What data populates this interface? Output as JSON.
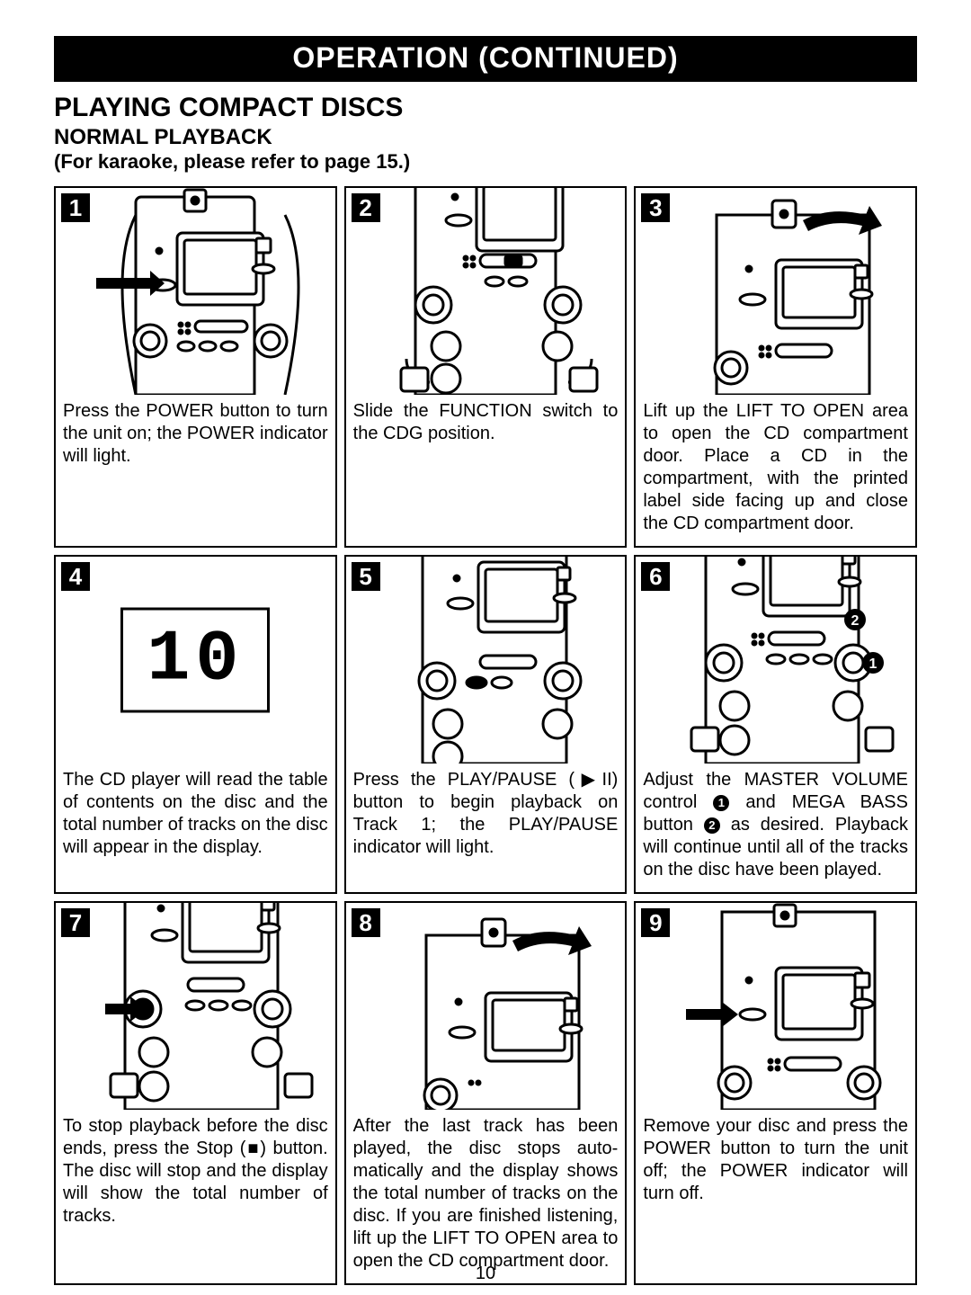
{
  "header": {
    "banner": "OPERATION (CONTINUED)",
    "title": "PLAYING COMPACT DISCS",
    "subtitle": "NORMAL PLAYBACK",
    "note": "(For karaoke, please refer to page 15.)"
  },
  "page_number": "10",
  "steps": [
    {
      "num": "1",
      "text": "Press the POWER button to turn the unit on; the POWER indicator will light."
    },
    {
      "num": "2",
      "text": "Slide the FUNCTION switch to the CDG position."
    },
    {
      "num": "3",
      "text": "Lift up the LIFT TO OPEN area to open the CD compartment door. Place a CD in the compartment, with the printed label side facing up and close the CD compartment door."
    },
    {
      "num": "4",
      "text": "The CD player will read the table of contents on the disc and the total number of tracks on the disc will appear in the display."
    },
    {
      "num": "5",
      "text": "Press the PLAY/PAUSE (▶II) button to begin playback on Track 1; the PLAY/PAUSE indicator will light."
    },
    {
      "num": "6",
      "text_html": "Adjust the MASTER VOLUME control <span class='circnum'>1</span> and MEGA BASS button <span class='circnum'>2</span> as desired. Playback will continue until all of the tracks on the disc have been played."
    },
    {
      "num": "7",
      "text": "To stop playback before the disc ends, press the Stop (■) button. The disc will stop and the display will show the total number of tracks."
    },
    {
      "num": "8",
      "text": "After the last track has been played, the disc stops auto­matically and the display shows the total number of tracks on the disc. If you are finished listening, lift up the LIFT TO OPEN area to open the CD compartment door."
    },
    {
      "num": "9",
      "text": "Remove your disc and press the POWER button to turn the unit off; the POWER indicator will turn off."
    }
  ],
  "display_digits": "10",
  "colors": {
    "black": "#000000",
    "white": "#ffffff"
  }
}
